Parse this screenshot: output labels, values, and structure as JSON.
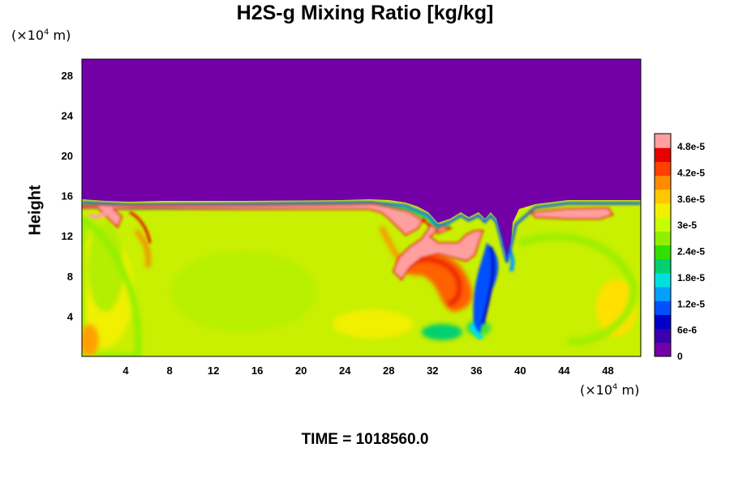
{
  "title": "H2S-g Mixing Ratio [kg/kg]",
  "y_unit": {
    "prefix": "(×10",
    "exp": "4",
    "suffix": " m)"
  },
  "x_unit": {
    "prefix": "(×10",
    "exp": "4",
    "suffix": " m)"
  },
  "time_label": "TIME = 1018560.0",
  "chart_data": {
    "type": "heatmap",
    "title": "H2S-g Mixing Ratio [kg/kg]",
    "xlabel": "",
    "ylabel": "Height",
    "xlim": [
      0,
      51
    ],
    "ylim": [
      0,
      29.6
    ],
    "x_ticks": [
      "4",
      "8",
      "12",
      "16",
      "20",
      "24",
      "28",
      "32",
      "36",
      "40",
      "44",
      "48"
    ],
    "x_tick_values": [
      4,
      8,
      12,
      16,
      20,
      24,
      28,
      32,
      36,
      40,
      44,
      48
    ],
    "y_ticks": [
      "4",
      "8",
      "12",
      "16",
      "20",
      "24",
      "28"
    ],
    "y_tick_values": [
      4,
      8,
      12,
      16,
      20,
      24,
      28
    ],
    "colorbar": {
      "labels": [
        "0",
        "6e-6",
        "1.2e-5",
        "1.8e-5",
        "2.4e-5",
        "3e-5",
        "3.6e-5",
        "4.2e-5",
        "4.8e-5"
      ],
      "min": 0,
      "max": 5.1e-05,
      "colors": [
        "#7300a6",
        "#3a00b0",
        "#0000c8",
        "#0050ff",
        "#00a0ff",
        "#00e0e0",
        "#00d070",
        "#30e000",
        "#90f000",
        "#c8ff00",
        "#f0f000",
        "#ffc800",
        "#ff8c00",
        "#ff4000",
        "#e80000",
        "#ffa0a0"
      ]
    },
    "background_value": 0,
    "field_regions": [
      {
        "name": "upper-zero-region",
        "y_range": [
          15.6,
          29.6
        ],
        "value": 0
      },
      {
        "name": "mixed-layer-main",
        "y_range": [
          0,
          15.6
        ],
        "value": 3.3e-05
      }
    ]
  }
}
